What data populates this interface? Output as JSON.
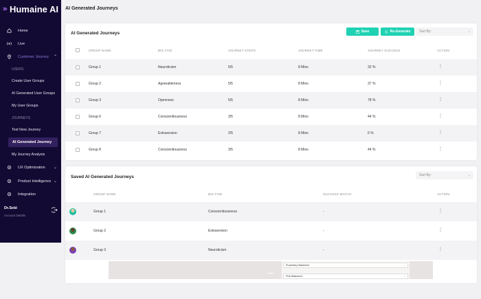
{
  "brand": {
    "name": "Humaine AI"
  },
  "sidebar": {
    "nav": [
      {
        "label": "Home",
        "icon": "home-icon"
      },
      {
        "label": "Live",
        "icon": "live-icon"
      },
      {
        "label": "Customer Journey",
        "icon": "map-pin-icon"
      }
    ],
    "users_heading": "USERS",
    "users_items": [
      "Create User Groups",
      "AI Generated User Groups",
      "My User Groups"
    ],
    "journeys_heading": "JOURNEYS",
    "journeys_items": [
      "Test New Journey",
      "AI Generated Journey",
      "My Journey Analysis"
    ],
    "nav_bottom": [
      {
        "label": "UX Optimization",
        "icon": "gear-icon"
      },
      {
        "label": "Product Intelligence",
        "icon": "gear-icon"
      },
      {
        "label": "Integration",
        "icon": "gear-icon"
      }
    ],
    "user": {
      "name": "Dr.Sebi",
      "subtitle": "Account Details"
    }
  },
  "page_title": "AI Generated Journeys",
  "card1": {
    "title": "AI Generated Journeys",
    "save_label": "Save",
    "regenerate_label": "Re-Generate",
    "sort_placeholder": "Sort By:",
    "columns": [
      "GROUP NAME",
      "BIG FIVE",
      "JOURNEY STEPS",
      "JOURNEY TIME",
      "JOURNEY SUCCESS",
      "ACTION"
    ],
    "rows": [
      {
        "group": "Group 1",
        "big_five": "Neuroticism",
        "steps": "5/5",
        "time": "8 Mins",
        "success": "32 %"
      },
      {
        "group": "Group 2",
        "big_five": "Agreeableness",
        "steps": "5/5",
        "time": "8 Mins",
        "success": "37 %"
      },
      {
        "group": "Group 3",
        "big_five": "Openness",
        "steps": "5/5",
        "time": "8 Mins",
        "success": "78 %"
      },
      {
        "group": "Group 6",
        "big_five": "Conscientiousness",
        "steps": "3/5",
        "time": "8 Mins",
        "success": "44 %"
      },
      {
        "group": "Group 7",
        "big_five": "Extraversion",
        "steps": "2/5",
        "time": "8 Mins",
        "success": "6 %"
      },
      {
        "group": "Group 8",
        "big_five": "Conscientiousness",
        "steps": "3/5",
        "time": "8 Mins",
        "success": "44 %"
      }
    ],
    "action_glyph": "⋮"
  },
  "card2": {
    "title": "Saved AI Generated Journeys",
    "sort_placeholder": "Sort By:",
    "columns": [
      "GROUP NAME",
      "BIG FIVE",
      "SUCCESS MATCH",
      "ACTION"
    ],
    "rows": [
      {
        "group": "Group 1",
        "big_five": "Conscientiousness",
        "match": "-"
      },
      {
        "group": "Group 2",
        "big_five": "Extraversion",
        "match": "-"
      },
      {
        "group": "Group 3",
        "big_five": "Neuroticism",
        "match": "-"
      }
    ]
  },
  "overlay": {
    "fields": [
      "Proprietary Statement",
      "FDA Statement"
    ],
    "field_caret": "⌄"
  },
  "colors": {
    "sidebar": "#120a33",
    "accent": "#1fd2b3",
    "active": "#8b78d8"
  }
}
